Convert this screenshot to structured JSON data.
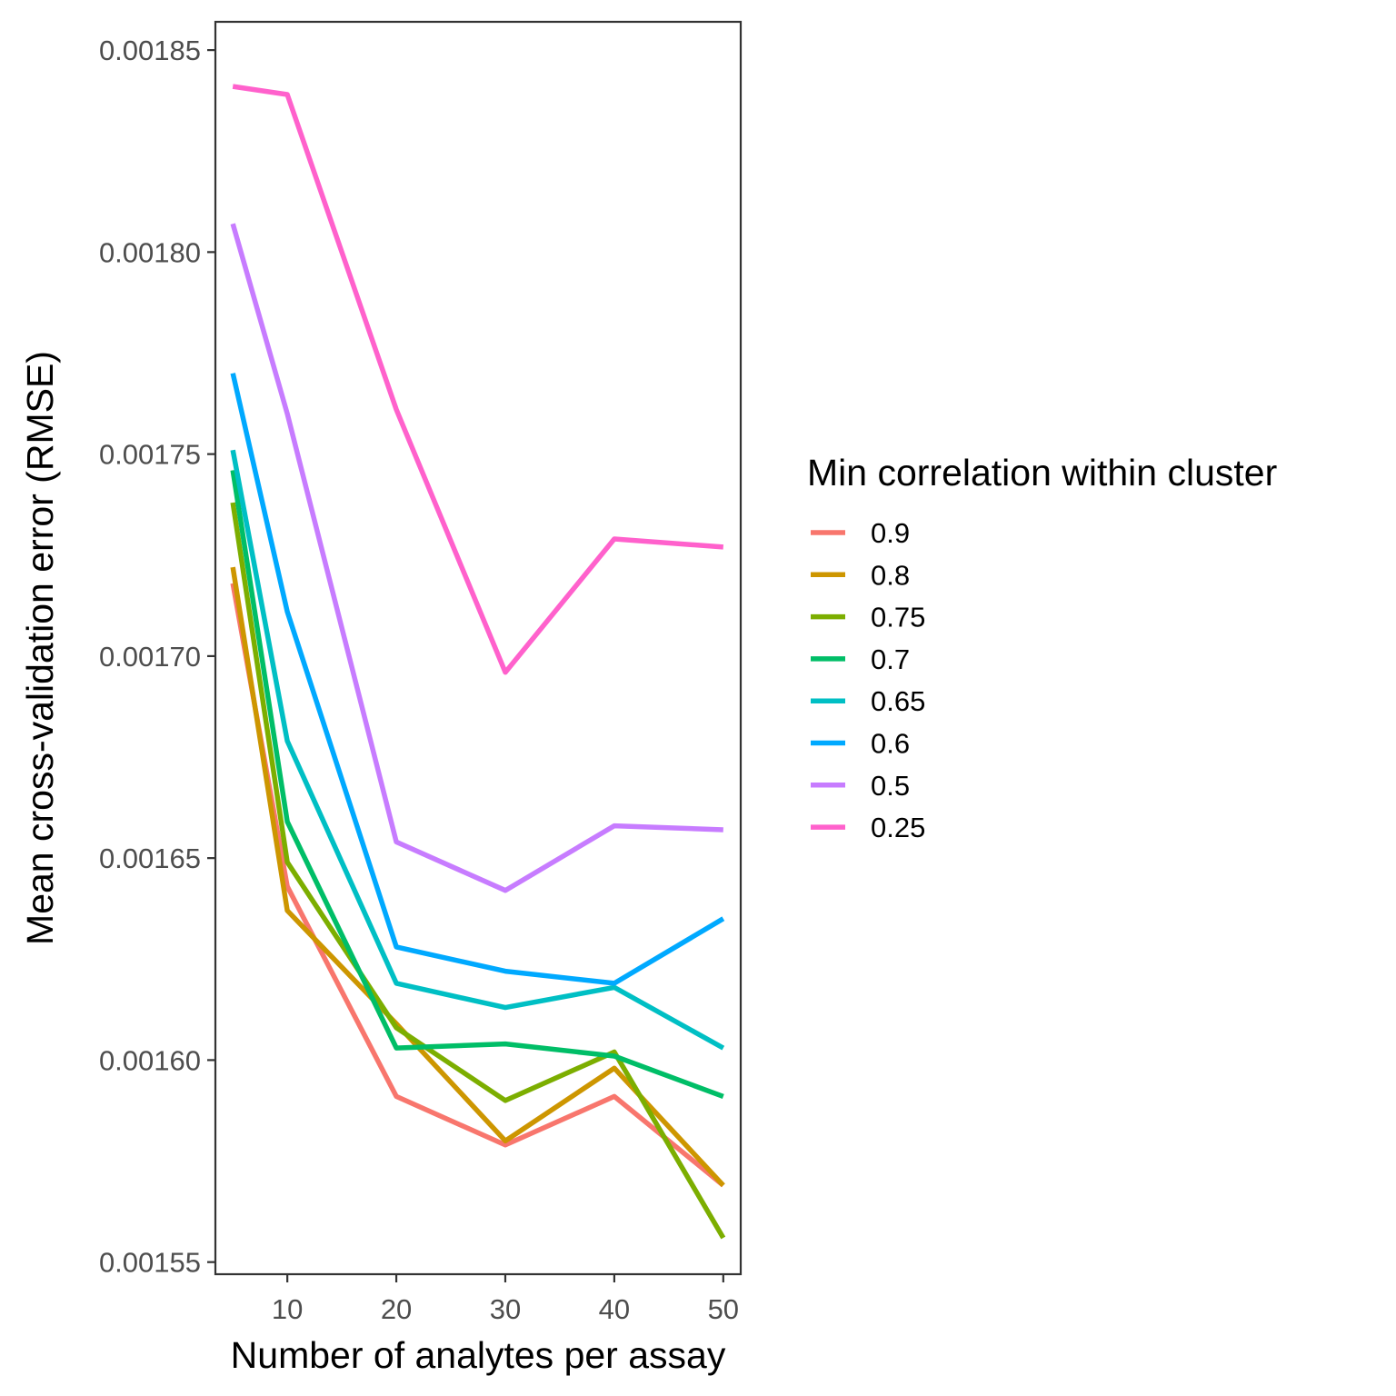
{
  "chart_data": {
    "type": "line",
    "xlabel": "Number of analytes per assay",
    "ylabel": "Mean cross-validation error (RMSE)",
    "xlim": [
      3.4,
      51.6
    ],
    "ylim": [
      0.001547,
      0.001857
    ],
    "x_ticks": [
      10,
      20,
      30,
      40,
      50
    ],
    "x_tick_labels": [
      "10",
      "20",
      "30",
      "40",
      "50"
    ],
    "y_ticks": [
      0.00155,
      0.0016,
      0.00165,
      0.0017,
      0.00175,
      0.0018,
      0.00185
    ],
    "y_tick_labels": [
      "0.00155",
      "0.00160",
      "0.00165",
      "0.00170",
      "0.00175",
      "0.00180",
      "0.00185"
    ],
    "x": [
      5,
      10,
      20,
      30,
      40,
      50
    ],
    "grid": false,
    "legend": {
      "title": "Min correlation within cluster",
      "position": "right"
    },
    "series": [
      {
        "name": "0.9",
        "color": "#F8766D",
        "values": [
          0.001718,
          0.001643,
          0.001591,
          0.001579,
          0.001591,
          0.001569
        ]
      },
      {
        "name": "0.8",
        "color": "#CD9600",
        "values": [
          0.001722,
          0.001637,
          0.001609,
          0.00158,
          0.001598,
          0.001569
        ]
      },
      {
        "name": "0.75",
        "color": "#7CAE00",
        "values": [
          0.001738,
          0.001649,
          0.001608,
          0.00159,
          0.001602,
          0.001556
        ]
      },
      {
        "name": "0.7",
        "color": "#00BE67",
        "values": [
          0.001746,
          0.001659,
          0.001603,
          0.001604,
          0.001601,
          0.001591
        ]
      },
      {
        "name": "0.65",
        "color": "#00BFC4",
        "values": [
          0.001751,
          0.001679,
          0.001619,
          0.001613,
          0.001618,
          0.001603
        ]
      },
      {
        "name": "0.6",
        "color": "#00A9FF",
        "values": [
          0.00177,
          0.001711,
          0.001628,
          0.001622,
          0.001619,
          0.001635
        ]
      },
      {
        "name": "0.5",
        "color": "#C77CFF",
        "values": [
          0.001807,
          0.00176,
          0.001654,
          0.001642,
          0.001658,
          0.001657
        ]
      },
      {
        "name": "0.25",
        "color": "#FF61CC",
        "values": [
          0.001841,
          0.001839,
          0.001761,
          0.001696,
          0.001729,
          0.001727
        ]
      }
    ]
  }
}
